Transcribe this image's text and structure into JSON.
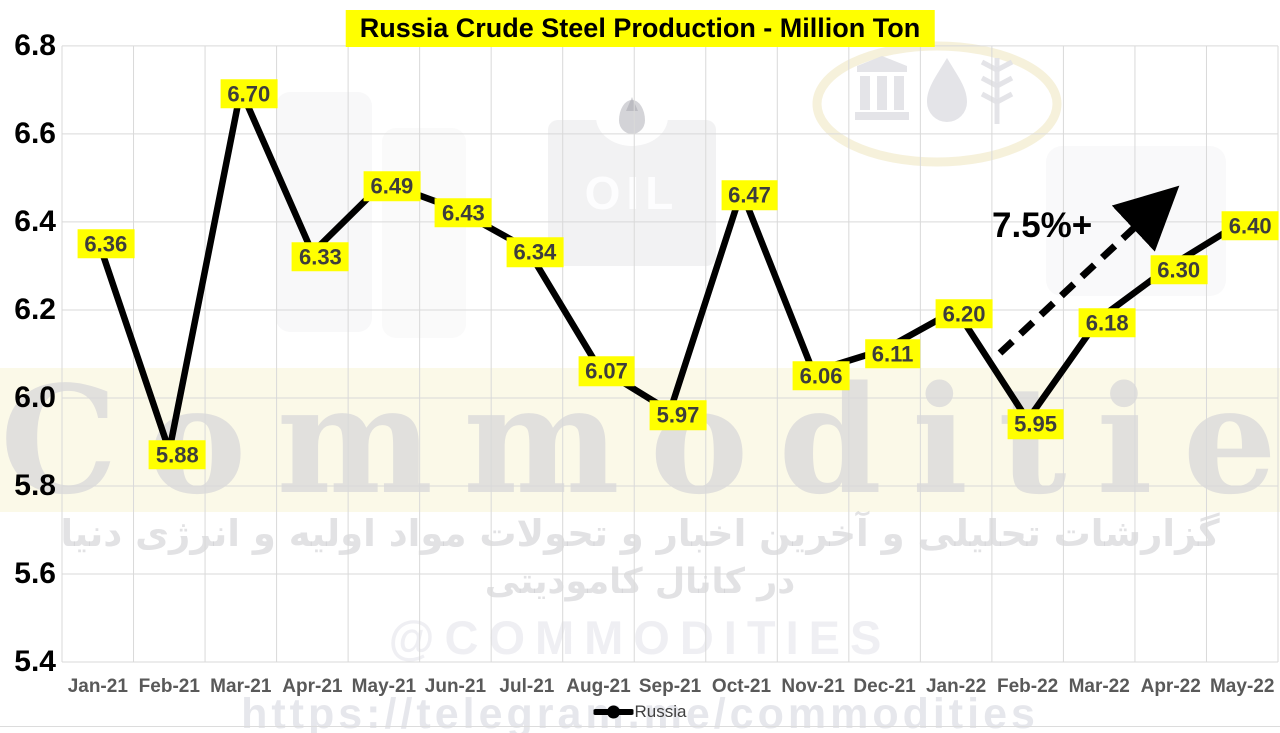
{
  "title": "Russia Crude Steel Production - Million Ton",
  "chart_data": {
    "type": "line",
    "title": "Russia Crude Steel Production - Million Ton",
    "categories": [
      "Jan-21",
      "Feb-21",
      "Mar-21",
      "Apr-21",
      "May-21",
      "Jun-21",
      "Jul-21",
      "Aug-21",
      "Sep-21",
      "Oct-21",
      "Nov-21",
      "Dec-21",
      "Jan-22",
      "Feb-22",
      "Mar-22",
      "Apr-22",
      "May-22"
    ],
    "series": [
      {
        "name": "Russia",
        "color": "#000000",
        "values": [
          6.36,
          5.88,
          6.7,
          6.33,
          6.49,
          6.43,
          6.34,
          6.07,
          5.97,
          6.47,
          6.06,
          6.11,
          6.2,
          5.95,
          6.18,
          6.3,
          6.4
        ],
        "labels": [
          "6.36",
          "5.88",
          "6.70",
          "6.33",
          "6.49",
          "6.43",
          "6.34",
          "6.07",
          "5.97",
          "6.47",
          "6.06",
          "6.11",
          "6.20",
          "5.95",
          "6.18",
          "6.30",
          "6.40"
        ]
      }
    ],
    "ylim": [
      5.4,
      6.8
    ],
    "yticks": [
      6.8,
      6.6,
      6.4,
      6.2,
      6.0,
      5.8,
      5.6,
      5.4
    ],
    "grid": true,
    "legend_position": "bottom",
    "annotation": "7.5%+"
  },
  "annotation": {
    "text": "7.5%+"
  },
  "watermarks": {
    "brand": "Commodities",
    "persian_line1": "گزارشات تحلیلی و آخرین اخبار و تحولات مواد اولیه و انرژی دنیا",
    "persian_line2": "در کانال کامودیتی",
    "handle": "@COMMODITIES",
    "url": "https://telegram.me/commodities",
    "oil_text": "OIL"
  },
  "colors": {
    "title_bg": "#ffff00",
    "title_text": "#000000",
    "data_label_bg": "#ffff00",
    "data_label_text": "#3d3d3d",
    "series_line": "#000000",
    "grid_line": "#d9d9d9",
    "x_tick_text": "#595959",
    "y_tick_text": "#000000",
    "watermark_band": "#fbf9e8"
  }
}
